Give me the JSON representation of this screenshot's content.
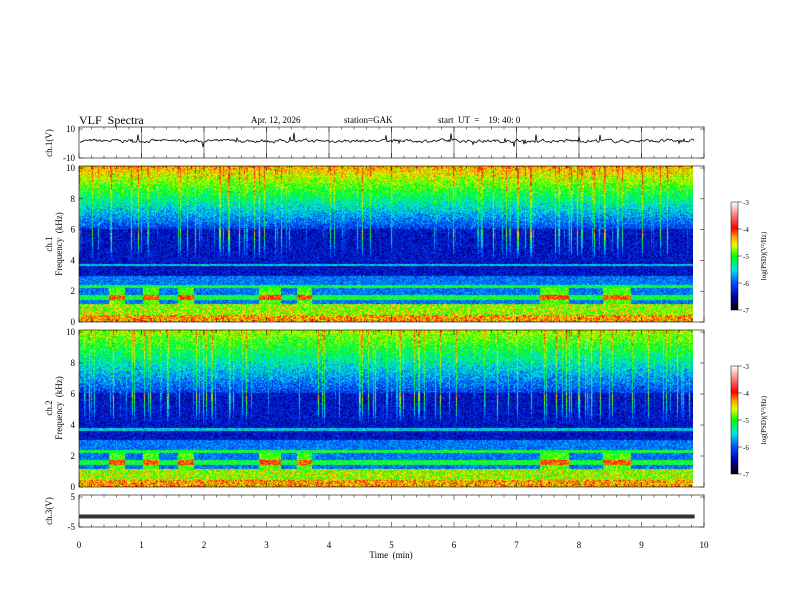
{
  "header": {
    "title": "VLF  Spectra",
    "date": "Apr. 12, 2026",
    "station": "station=GAK",
    "start": "start  UT  =    19: 40: 0"
  },
  "chart_data": [
    {
      "type": "line",
      "name": "ch1",
      "ylabel": "ch.1(V)",
      "ylim": [
        -10,
        10
      ],
      "yticks": [
        "10",
        "-10"
      ],
      "xlim": [
        0,
        10
      ],
      "description_level": 0
    },
    {
      "type": "heatmap",
      "name": "ch1-spectrogram",
      "ylabel": [
        "ch.1",
        "Frequency  (kHz)"
      ],
      "ylim": [
        0,
        10
      ],
      "yticks": [
        "0",
        "2",
        "4",
        "6",
        "8",
        "10"
      ],
      "xlim": [
        0,
        10
      ],
      "data_end_min": 9.85,
      "colorbar": {
        "label": "log(PSD)(V²/Hz)",
        "range": [
          -7,
          -3
        ],
        "ticks": [
          "-3",
          "-4",
          "-5",
          "-6",
          "-7"
        ]
      }
    },
    {
      "type": "heatmap",
      "name": "ch2-spectrogram",
      "ylabel": [
        "ch.2",
        "Frequency  (kHz)"
      ],
      "ylim": [
        0,
        10
      ],
      "yticks": [
        "0",
        "2",
        "4",
        "6",
        "8",
        "10"
      ],
      "xlim": [
        0,
        10
      ],
      "data_end_min": 9.85,
      "colorbar": {
        "label": "log(PSD)(V²/Hz)",
        "range": [
          -7,
          -3
        ],
        "ticks": [
          "-3",
          "-4",
          "-5",
          "-6",
          "-7"
        ]
      }
    },
    {
      "type": "line",
      "name": "ch3",
      "ylabel": "ch.3(V)",
      "ylim": [
        -5,
        5
      ],
      "yticks": [
        "5",
        "-5"
      ],
      "xlim": [
        0,
        10
      ],
      "level": -1.5
    }
  ],
  "xaxis": {
    "label": "Time  (min)",
    "ticks": [
      "0",
      "1",
      "2",
      "3",
      "4",
      "5",
      "6",
      "7",
      "8",
      "9",
      "10"
    ]
  }
}
